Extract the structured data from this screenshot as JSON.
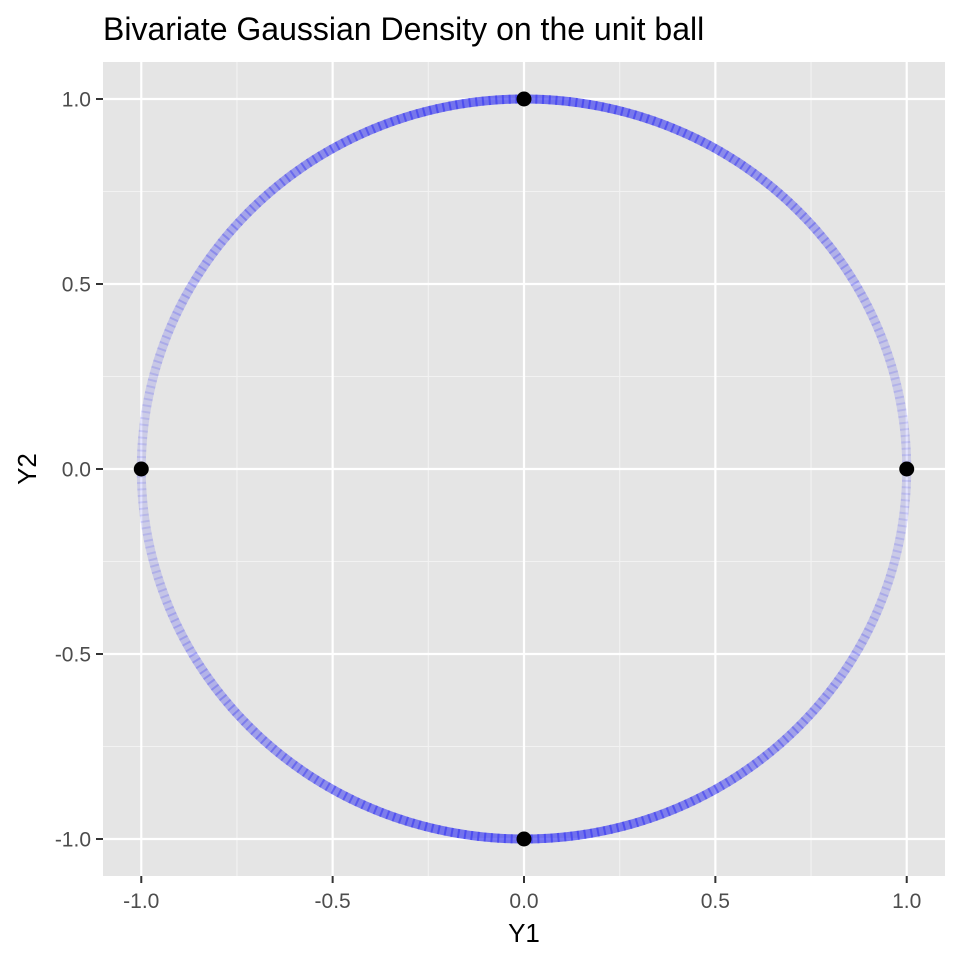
{
  "chart_data": {
    "type": "scatter",
    "title": "Bivariate Gaussian Density on the unit ball",
    "xlabel": "Y1",
    "ylabel": "Y2",
    "xlim": [
      -1.1,
      1.1
    ],
    "ylim": [
      -1.1,
      1.1
    ],
    "x_ticks": [
      -1.0,
      -0.5,
      0.0,
      0.5,
      1.0
    ],
    "x_tick_labels": [
      "-1.0",
      "-0.5",
      "0.0",
      "0.5",
      "1.0"
    ],
    "y_ticks": [
      -1.0,
      -0.5,
      0.0,
      0.5,
      1.0
    ],
    "y_tick_labels": [
      "-1.0",
      "-0.5",
      "0.0",
      "0.5",
      "1.0"
    ],
    "grid": true,
    "legend": "none",
    "series": [
      {
        "kind": "density-circle",
        "radius": 1.0,
        "color": "#3c3cf0",
        "description_of_shading": "opacity varies with angle; densest near the top and bottom of the circle, faintest near left and right"
      },
      {
        "kind": "points",
        "color": "#000000",
        "x": [
          0.0,
          -1.0,
          1.0,
          0.0
        ],
        "y": [
          1.0,
          0.0,
          0.0,
          -1.0
        ]
      }
    ]
  },
  "colors": {
    "panel_background": "#e5e5e5",
    "grid_major": "#ffffff",
    "grid_minor": "#f2f2f2",
    "density_line": "#3c3cf0",
    "points": "#000000"
  }
}
